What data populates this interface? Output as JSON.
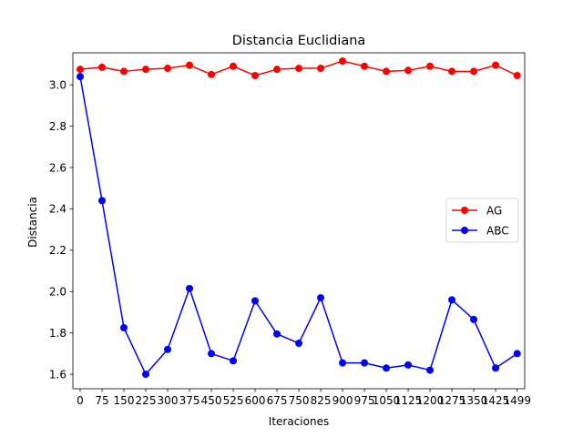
{
  "chart_data": {
    "type": "line",
    "title": "Distancia Euclidiana",
    "xlabel": "Iteraciones",
    "ylabel": "Distancia",
    "x": [
      0,
      75,
      150,
      225,
      300,
      375,
      450,
      525,
      600,
      675,
      750,
      825,
      900,
      975,
      1050,
      1125,
      1200,
      1275,
      1350,
      1425,
      1499
    ],
    "x_tick_labels": [
      "0",
      "75",
      "150",
      "225",
      "300",
      "375",
      "450",
      "525",
      "600",
      "675",
      "750",
      "825",
      "900",
      "975",
      "1050",
      "1125",
      "1200",
      "1275",
      "1350",
      "1425",
      "1499"
    ],
    "ylim": [
      1.53,
      3.155
    ],
    "y_ticks": [
      1.6,
      1.8,
      2.0,
      2.2,
      2.4,
      2.6,
      2.8,
      3.0
    ],
    "y_tick_labels": [
      "1.6",
      "1.8",
      "2.0",
      "2.2",
      "2.4",
      "2.6",
      "2.8",
      "3.0"
    ],
    "legend_position": "center-right",
    "series": [
      {
        "name": "AG",
        "color": "#ff0000",
        "values": [
          3.075,
          3.085,
          3.065,
          3.075,
          3.08,
          3.095,
          3.05,
          3.09,
          3.045,
          3.075,
          3.08,
          3.08,
          3.115,
          3.09,
          3.065,
          3.07,
          3.09,
          3.065,
          3.065,
          3.095,
          3.045
        ]
      },
      {
        "name": "ABC",
        "color": "#0000ff",
        "values": [
          3.04,
          2.44,
          1.825,
          1.6,
          1.72,
          2.015,
          1.7,
          1.665,
          1.955,
          1.795,
          1.75,
          1.97,
          1.655,
          1.655,
          1.63,
          1.645,
          1.62,
          1.96,
          1.865,
          1.63,
          1.7
        ]
      }
    ]
  }
}
